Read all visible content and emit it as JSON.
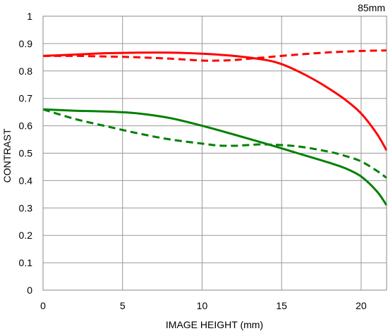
{
  "chart_data": {
    "type": "line",
    "title": "",
    "annotation": "85mm",
    "xlabel": "IMAGE HEIGHT (mm)",
    "ylabel": "CONTRAST",
    "xlim": [
      0,
      21.6
    ],
    "ylim": [
      0,
      1
    ],
    "xticks": [
      0,
      5,
      10,
      15,
      20
    ],
    "yticks": [
      0,
      0.1,
      0.2,
      0.3,
      0.4,
      0.5,
      0.6,
      0.7,
      0.8,
      0.9,
      1
    ],
    "ytick_labels": [
      "0",
      "0.1",
      "0.2",
      "0.3",
      "0.4",
      "0.5",
      "0.6",
      "0.7",
      "0.8",
      "0.9",
      "1"
    ],
    "grid": true,
    "legend": "none",
    "series": [
      {
        "color": "#ff0000",
        "dash": "solid",
        "x": [
          0,
          2,
          4,
          6,
          8,
          10,
          12,
          14,
          15,
          16,
          17,
          18,
          19,
          20,
          21,
          21.6
        ],
        "y": [
          0.855,
          0.86,
          0.865,
          0.867,
          0.867,
          0.863,
          0.855,
          0.84,
          0.825,
          0.8,
          0.77,
          0.735,
          0.695,
          0.645,
          0.57,
          0.51
        ]
      },
      {
        "color": "#ff0000",
        "dash": "dashed",
        "x": [
          0,
          2,
          4,
          6,
          8,
          10,
          11,
          12,
          13,
          14,
          16,
          18,
          20,
          21.6
        ],
        "y": [
          0.855,
          0.855,
          0.853,
          0.85,
          0.845,
          0.838,
          0.838,
          0.84,
          0.845,
          0.85,
          0.86,
          0.868,
          0.873,
          0.875
        ]
      },
      {
        "color": "#008000",
        "dash": "solid",
        "x": [
          0,
          2,
          4,
          6,
          8,
          10,
          12,
          14,
          16,
          18,
          19,
          20,
          21,
          21.6
        ],
        "y": [
          0.66,
          0.655,
          0.652,
          0.645,
          0.628,
          0.6,
          0.568,
          0.535,
          0.5,
          0.465,
          0.445,
          0.415,
          0.36,
          0.31
        ]
      },
      {
        "color": "#008000",
        "dash": "dashed",
        "x": [
          0,
          2,
          4,
          6,
          8,
          10,
          11,
          12,
          13,
          14,
          16,
          18,
          19,
          20,
          21,
          21.6
        ],
        "y": [
          0.66,
          0.625,
          0.598,
          0.572,
          0.55,
          0.535,
          0.528,
          0.527,
          0.53,
          0.532,
          0.525,
          0.505,
          0.49,
          0.47,
          0.435,
          0.41
        ]
      }
    ]
  }
}
